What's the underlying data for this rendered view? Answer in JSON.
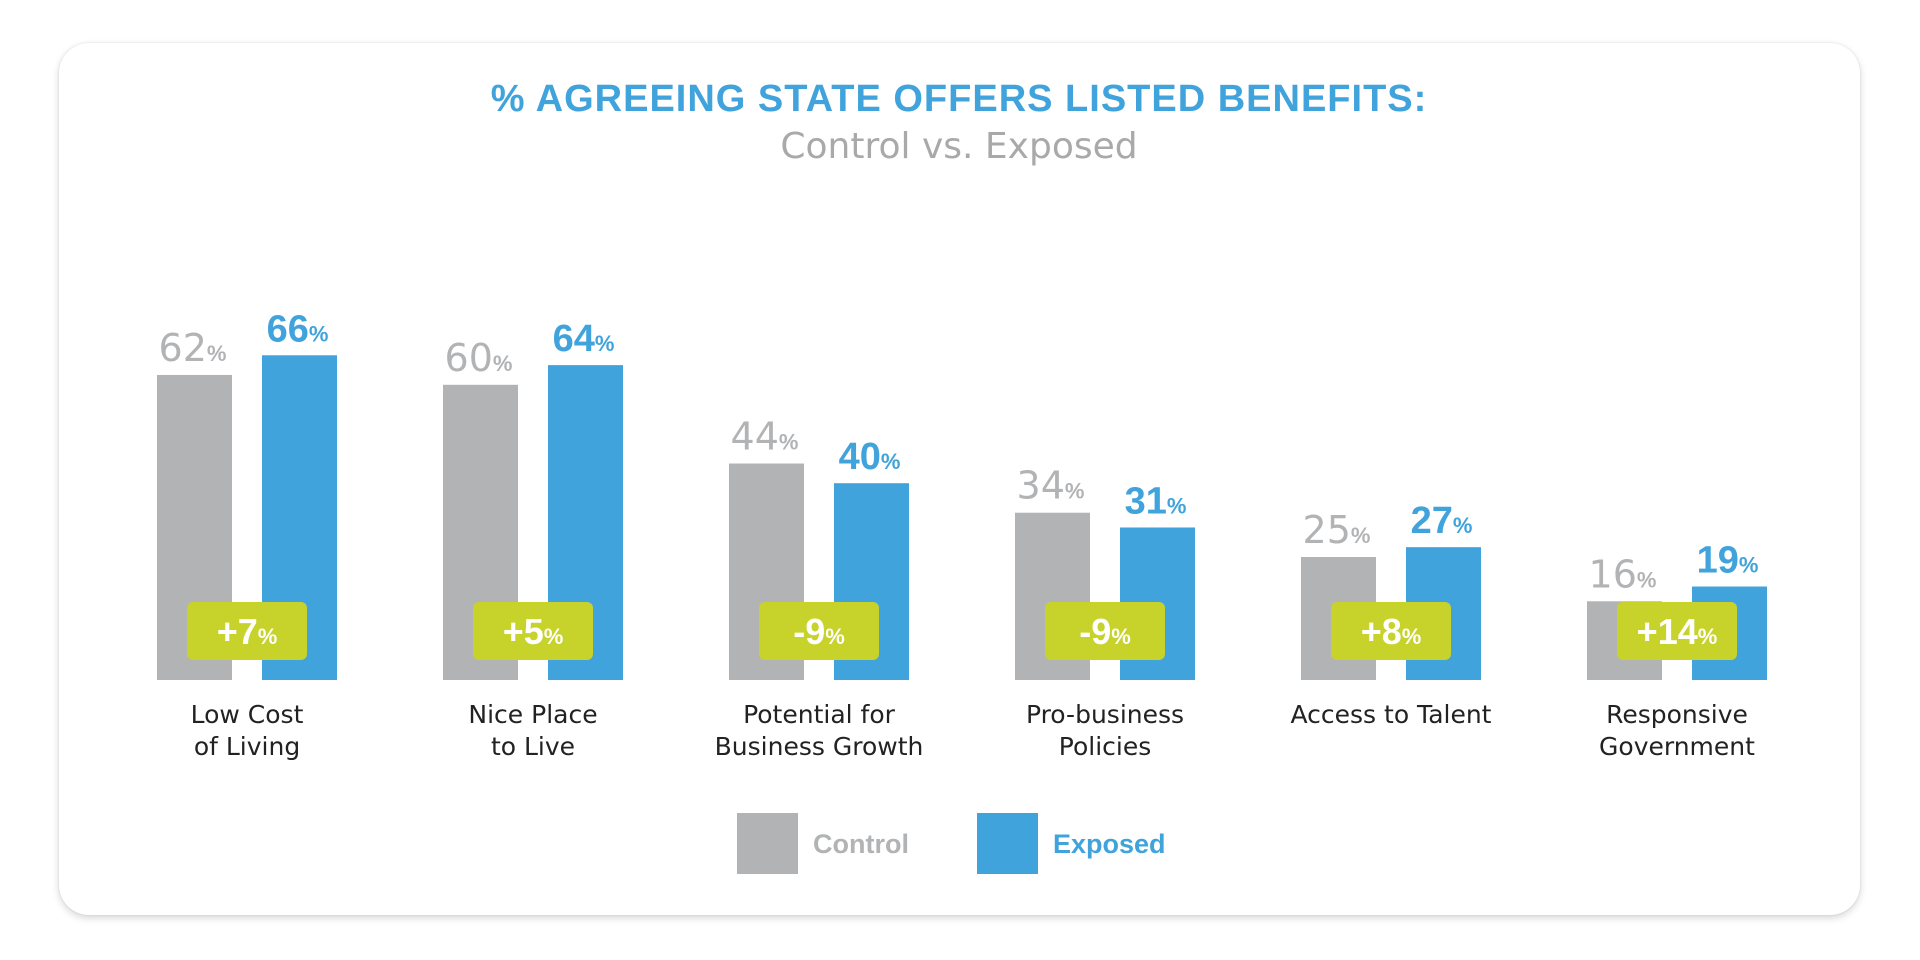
{
  "chart_data": {
    "type": "bar",
    "title": "% AGREEING STATE OFFERS LISTED BENEFITS:",
    "subtitle": "Control vs. Exposed",
    "categories": [
      [
        "Low Cost",
        "of Living"
      ],
      [
        "Nice Place",
        "to Live"
      ],
      [
        "Potential for",
        "Business Growth"
      ],
      [
        "Pro-business",
        "Policies"
      ],
      [
        "Access to Talent"
      ],
      [
        "Responsive",
        "Government"
      ]
    ],
    "series": [
      {
        "name": "Control",
        "values": [
          62,
          60,
          44,
          34,
          25,
          16
        ]
      },
      {
        "name": "Exposed",
        "values": [
          66,
          64,
          40,
          31,
          27,
          19
        ]
      }
    ],
    "differences": [
      "+7",
      "+5",
      "-9",
      "-9",
      "+8",
      "+14"
    ],
    "value_suffix": "%",
    "ylim": [
      0,
      70
    ],
    "xlabel": "",
    "ylabel": "",
    "grid": false,
    "legend_position": "bottom-center"
  },
  "colors": {
    "control": "#b2b3b5",
    "exposed": "#41a3db",
    "badge": "#c7d22b",
    "title": "#41a3db",
    "subtitle": "#a9a9a9",
    "category_text": "#222222",
    "badge_text": "#ffffff"
  }
}
